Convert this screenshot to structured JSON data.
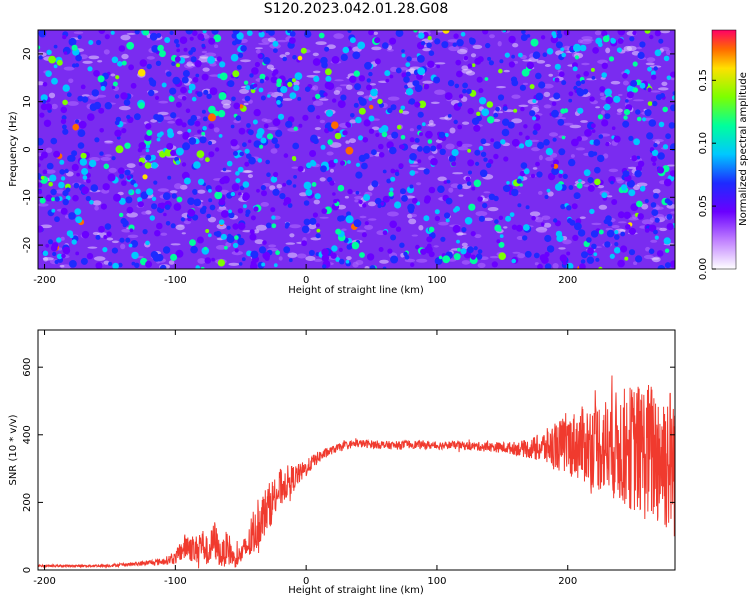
{
  "title": "S120.2023.042.01.28.G08",
  "colors": {
    "line": "#f03a2e",
    "heatmap_scale": [
      "#ffffff",
      "#c080ff",
      "#6a00ff",
      "#1d2bff",
      "#00c8ff",
      "#00ff9c",
      "#7dff00",
      "#ffe000",
      "#ff6a00",
      "#ff0066"
    ]
  },
  "chart_data": [
    {
      "type": "heatmap",
      "title": "S120.2023.042.01.28.G08",
      "xlabel": "Height of straight line (km)",
      "ylabel": "Frequency (Hz)",
      "xlim": [
        -205,
        282
      ],
      "ylim": [
        -25,
        25
      ],
      "xticks": [
        "-200",
        "-100",
        "0",
        "100",
        "200"
      ],
      "xtick_values": [
        -200,
        -100,
        0,
        100,
        200
      ],
      "yticks": [
        "-20",
        "-10",
        "0",
        "10",
        "20"
      ],
      "ytick_values": [
        -20,
        -10,
        0,
        10,
        20
      ],
      "grid": false,
      "colorbar": {
        "label": "Normalized spectral amplitude",
        "range": [
          0,
          0.19
        ],
        "ticks": [
          "0.00",
          "0.05",
          "0.10",
          "0.15"
        ],
        "tick_values": [
          0,
          0.05,
          0.1,
          0.15
        ]
      },
      "note_values": "dense speckle; typical amplitude 0.03-0.08, scattered peaks near 0.15-0.18"
    },
    {
      "type": "line",
      "xlabel": "Height of straight line (km)",
      "ylabel": "SNR (10 * v/v)",
      "xlim": [
        -205,
        282
      ],
      "ylim": [
        0,
        710
      ],
      "xticks": [
        "-200",
        "-100",
        "0",
        "100",
        "200"
      ],
      "xtick_values": [
        -200,
        -100,
        0,
        100,
        200
      ],
      "yticks": [
        "0",
        "200",
        "400",
        "600"
      ],
      "ytick_values": [
        0,
        200,
        400,
        600
      ],
      "grid": false,
      "series": [
        {
          "x": [
            -205,
            -180,
            -150,
            -130,
            -110,
            -100,
            -95,
            -90,
            -85,
            -80,
            -75,
            -70,
            -65,
            -60,
            -55,
            -50,
            -45,
            -40,
            -35,
            -30,
            -25,
            -20,
            -15,
            -10,
            -5,
            0,
            5,
            10,
            15,
            20,
            25,
            30,
            35,
            40,
            50,
            60,
            70,
            80,
            90,
            100,
            110,
            120,
            130,
            140,
            150,
            160,
            170,
            180,
            190,
            200,
            210,
            220,
            230,
            240,
            250,
            260,
            270,
            282
          ],
          "y": [
            12,
            12,
            13,
            18,
            25,
            35,
            60,
            75,
            55,
            80,
            50,
            90,
            40,
            70,
            30,
            45,
            70,
            100,
            150,
            180,
            210,
            240,
            260,
            270,
            285,
            300,
            320,
            335,
            345,
            355,
            362,
            368,
            372,
            374,
            372,
            370,
            368,
            372,
            370,
            368,
            370,
            368,
            366,
            364,
            362,
            360,
            358,
            362,
            366,
            370,
            372,
            370,
            368,
            365,
            360,
            350,
            340,
            320
          ],
          "spread": [
            3,
            3,
            4,
            6,
            10,
            18,
            35,
            45,
            40,
            55,
            40,
            60,
            35,
            55,
            25,
            30,
            45,
            60,
            70,
            70,
            65,
            60,
            50,
            40,
            30,
            25,
            20,
            18,
            15,
            12,
            12,
            12,
            12,
            12,
            12,
            12,
            12,
            12,
            12,
            12,
            12,
            12,
            13,
            14,
            16,
            20,
            28,
            45,
            70,
            90,
            110,
            130,
            150,
            170,
            190,
            210,
            220,
            230
          ]
        }
      ]
    }
  ]
}
